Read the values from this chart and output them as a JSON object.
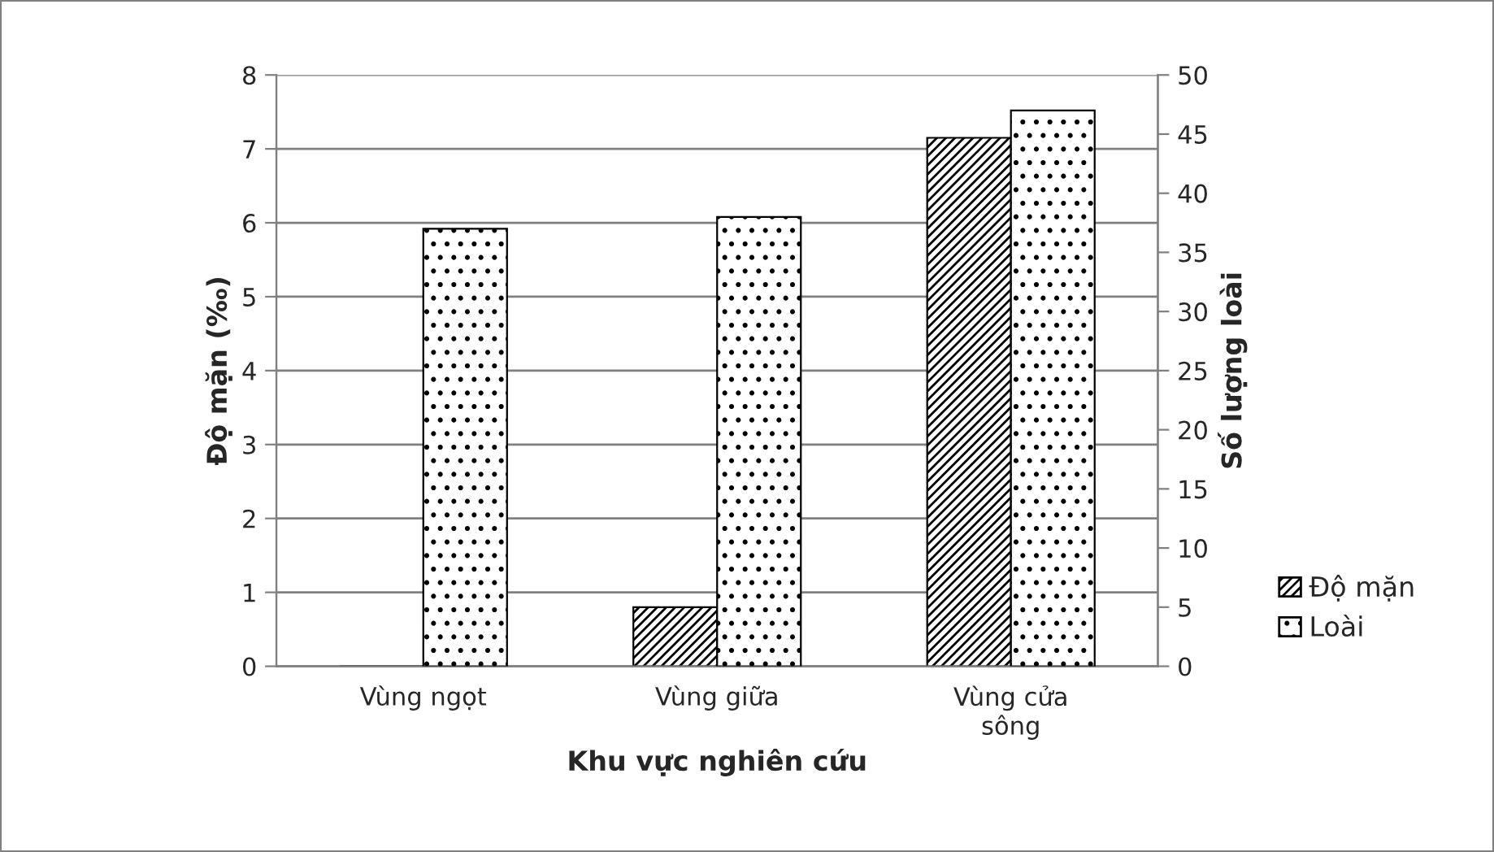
{
  "chart_data": {
    "type": "bar",
    "xlabel": "Khu vực nghiên cứu",
    "ylabel": "Độ mặn (‰)",
    "y2label": "Số lượng loài",
    "categories": [
      "Vùng ngọt",
      "Vùng giữa",
      "Vùng cửa sông"
    ],
    "series": [
      {
        "name": "Độ mặn",
        "color": "#000000",
        "values": [
          0,
          0.8,
          7.15
        ]
      },
      {
        "name": "Loài",
        "color": "#000000",
        "values": [
          37,
          38,
          47
        ],
        "axis": "y2"
      }
    ],
    "ylim": [
      0,
      8
    ],
    "yticks": [
      0,
      1,
      2,
      3,
      4,
      5,
      6,
      7,
      8
    ],
    "y2lim": [
      0,
      50
    ],
    "y2ticks": [
      0,
      5,
      10,
      15,
      20,
      25,
      30,
      35,
      40,
      45,
      50
    ],
    "grid": "y",
    "legend": "right"
  }
}
